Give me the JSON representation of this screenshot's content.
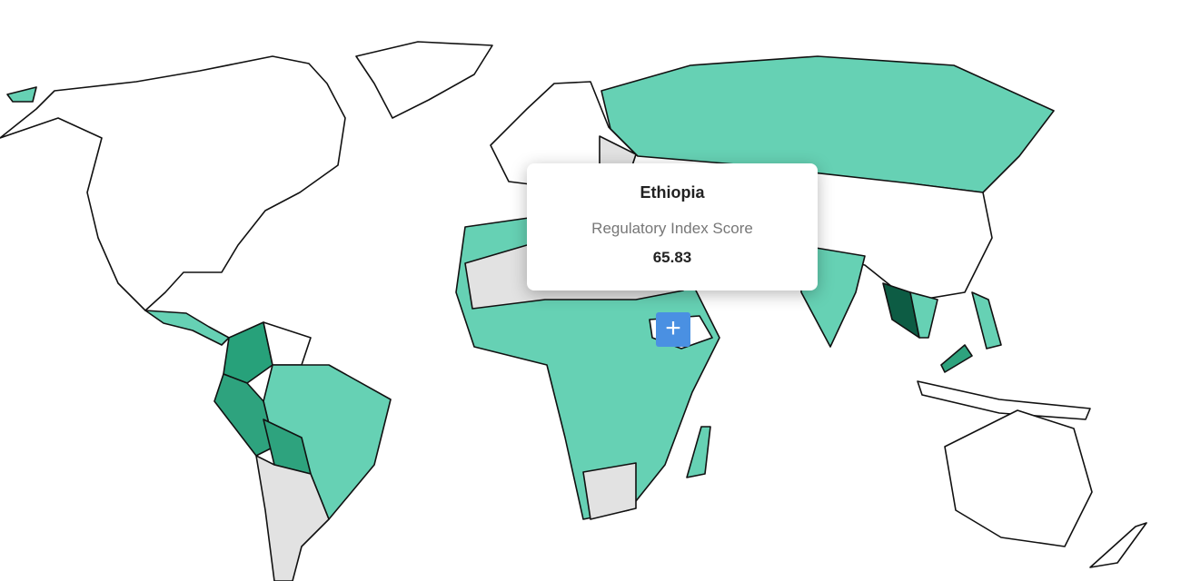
{
  "tooltip": {
    "country": "Ethiopia",
    "metric": "Regulatory Index Score",
    "value": 65.83
  }
}
